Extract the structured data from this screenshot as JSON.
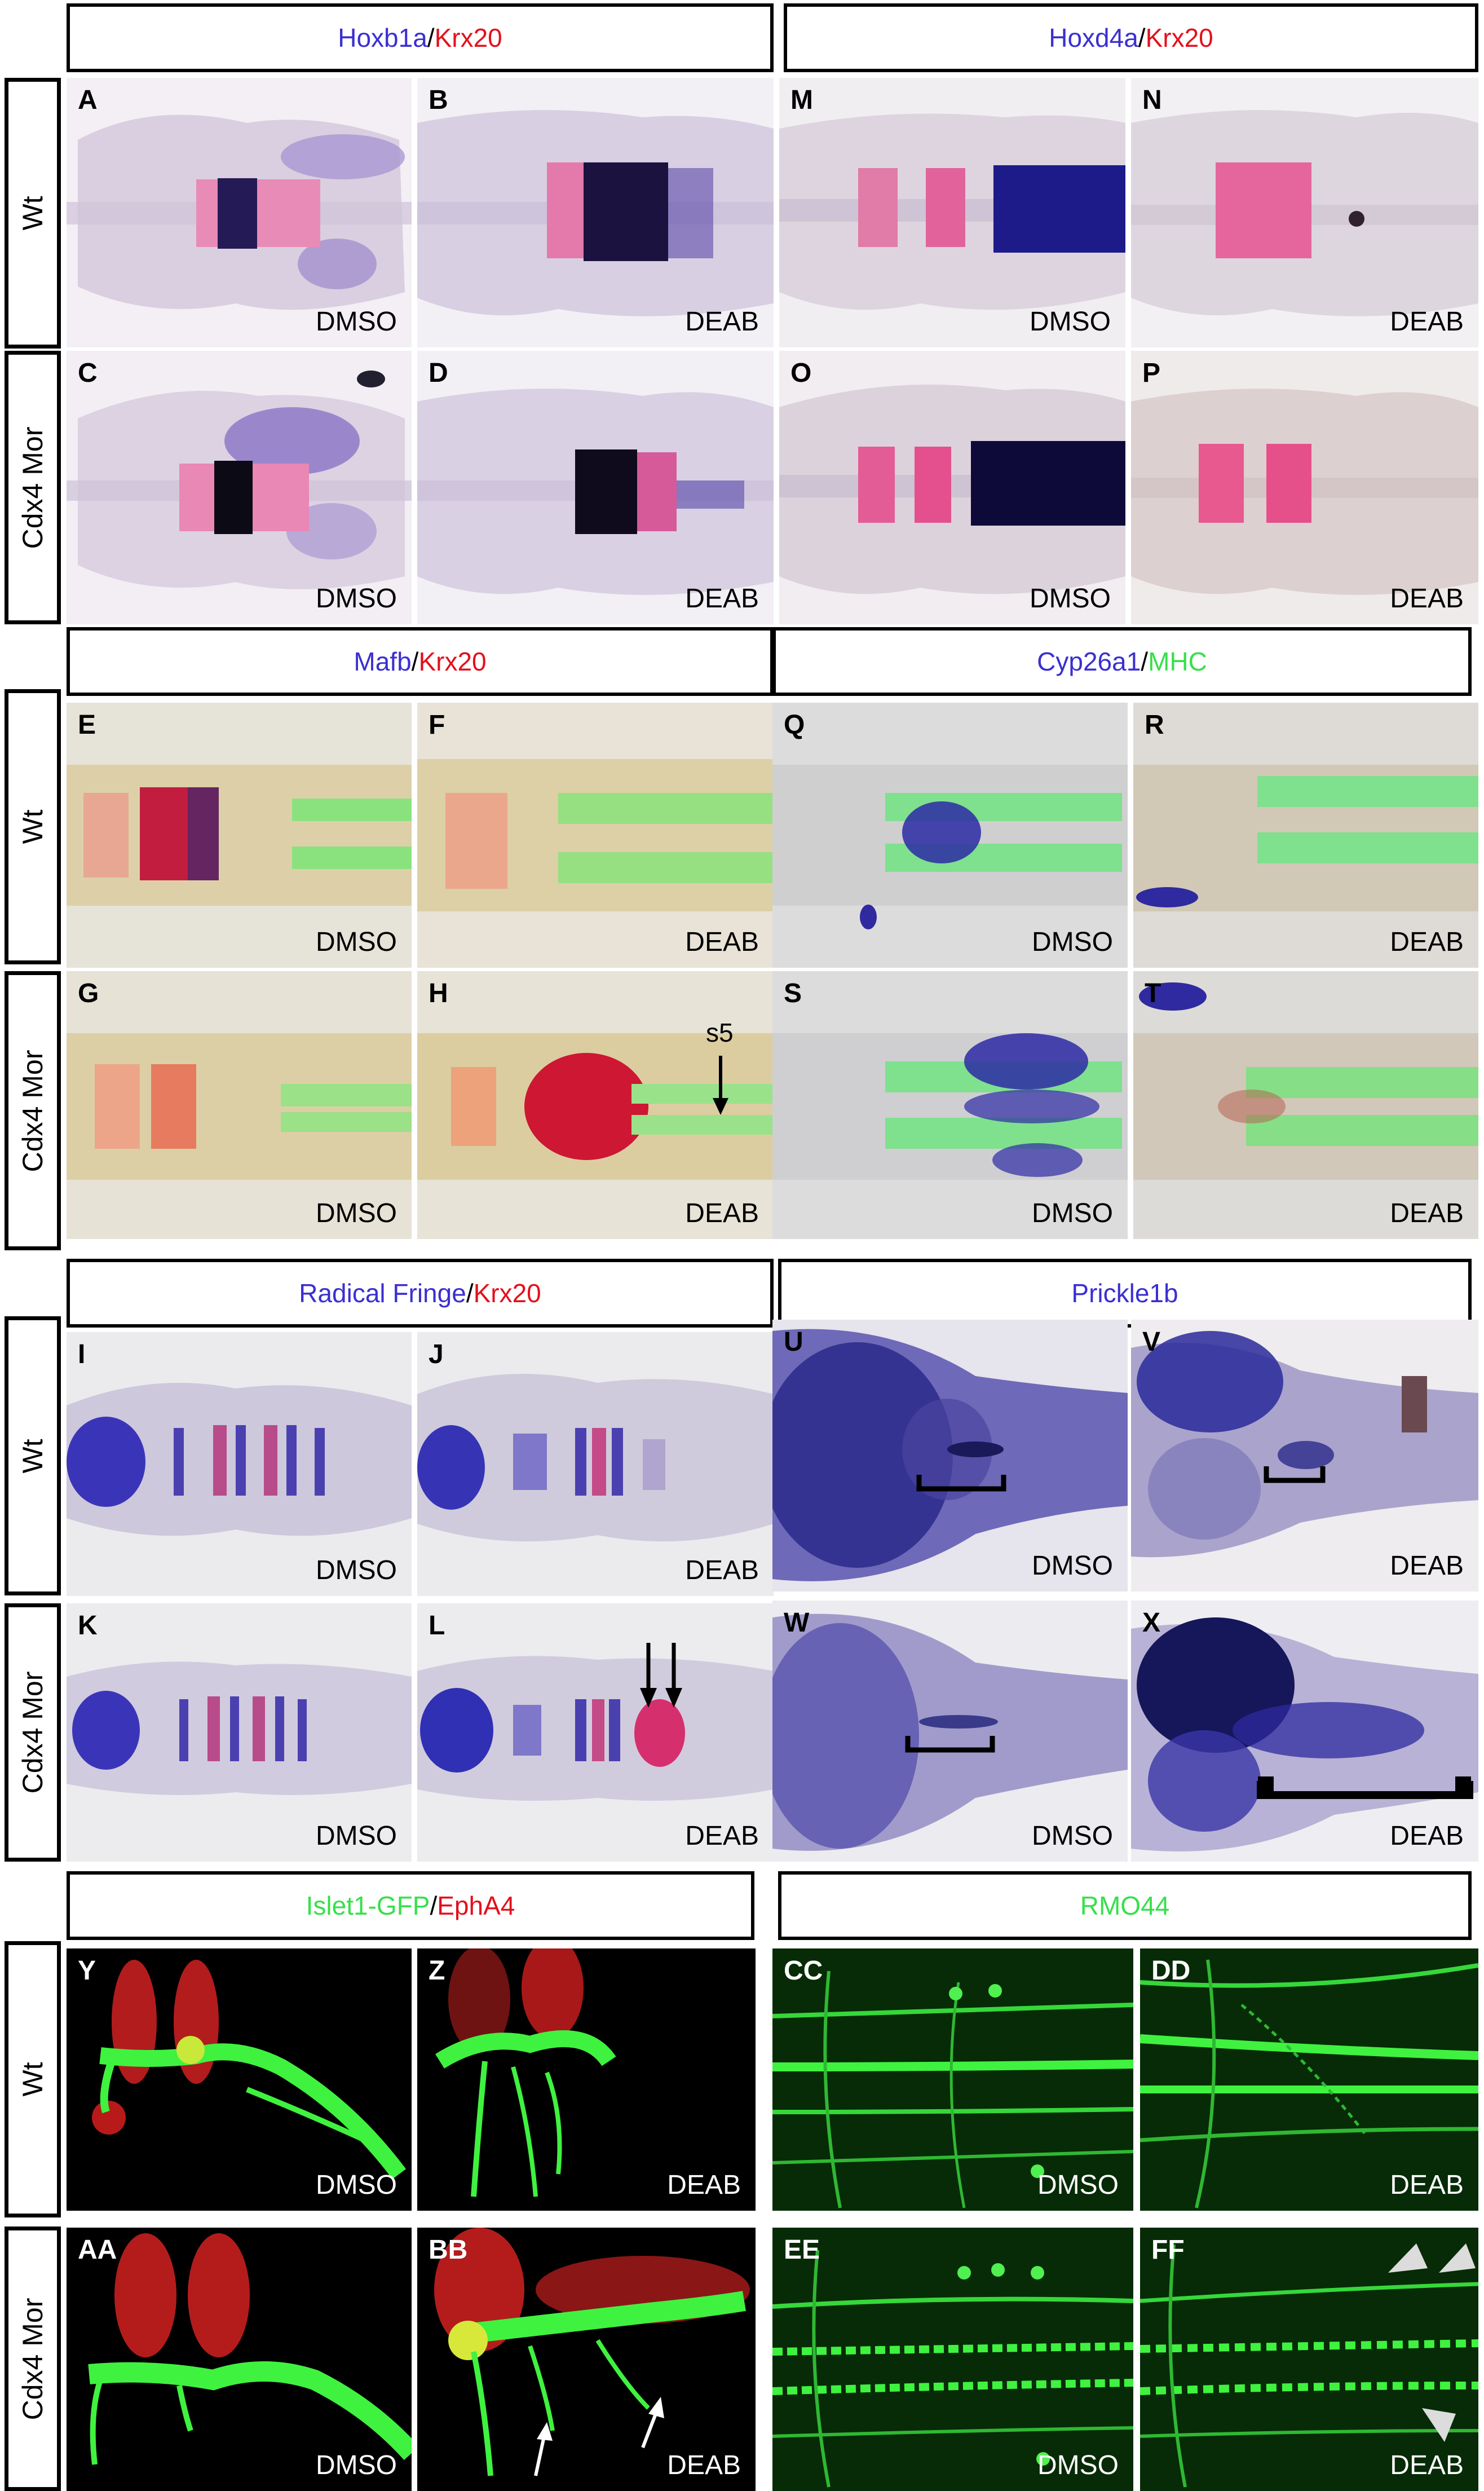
{
  "colors": {
    "blue_probe": "#3b2fd2",
    "red_probe": "#e3101c",
    "green_probe": "#37e04a"
  },
  "row_labels": {
    "wt": "Wt",
    "cdx4": "Cdx4 Mor"
  },
  "headers": {
    "hoxb1a": {
      "a": "Hoxb1a",
      "sep": "/",
      "b": "Krx20"
    },
    "hoxd4a": {
      "a": "Hoxd4a",
      "sep": "/",
      "b": "Krx20"
    },
    "mafb": {
      "a": "Mafb",
      "sep": "/",
      "b": "Krx20"
    },
    "cyp26a1": {
      "a": "Cyp26a1",
      "sep": "/",
      "b": "MHC"
    },
    "fringe": {
      "a": "Radical Fringe",
      "sep": "/",
      "b": "Krx20"
    },
    "prickle": {
      "a": "Prickle1b"
    },
    "islet": {
      "a": "Islet1-GFP",
      "sep": "/",
      "b": "EphA4"
    },
    "rmo": {
      "a": "RMO44"
    }
  },
  "panels": {
    "A": {
      "label": "A",
      "treat": "DMSO"
    },
    "B": {
      "label": "B",
      "treat": "DEAB"
    },
    "C": {
      "label": "C",
      "treat": "DMSO"
    },
    "D": {
      "label": "D",
      "treat": "DEAB"
    },
    "M": {
      "label": "M",
      "treat": "DMSO"
    },
    "N": {
      "label": "N",
      "treat": "DEAB"
    },
    "O": {
      "label": "O",
      "treat": "DMSO"
    },
    "P": {
      "label": "P",
      "treat": "DEAB"
    },
    "E": {
      "label": "E",
      "treat": "DMSO"
    },
    "F": {
      "label": "F",
      "treat": "DEAB"
    },
    "G": {
      "label": "G",
      "treat": "DMSO"
    },
    "H": {
      "label": "H",
      "treat": "DEAB",
      "annotation": "s5"
    },
    "Q": {
      "label": "Q",
      "treat": "DMSO"
    },
    "R": {
      "label": "R",
      "treat": "DEAB"
    },
    "S": {
      "label": "S",
      "treat": "DMSO"
    },
    "T": {
      "label": "T",
      "treat": "DEAB"
    },
    "I": {
      "label": "I",
      "treat": "DMSO"
    },
    "J": {
      "label": "J",
      "treat": "DEAB"
    },
    "K": {
      "label": "K",
      "treat": "DMSO"
    },
    "L": {
      "label": "L",
      "treat": "DEAB"
    },
    "U": {
      "label": "U",
      "treat": "DMSO"
    },
    "V": {
      "label": "V",
      "treat": "DEAB"
    },
    "W": {
      "label": "W",
      "treat": "DMSO"
    },
    "X": {
      "label": "X",
      "treat": "DEAB"
    },
    "Y": {
      "label": "Y",
      "treat": "DMSO"
    },
    "Z": {
      "label": "Z",
      "treat": "DEAB"
    },
    "AA": {
      "label": "AA",
      "treat": "DMSO"
    },
    "BB": {
      "label": "BB",
      "treat": "DEAB"
    },
    "CC": {
      "label": "CC",
      "treat": "DMSO"
    },
    "DD": {
      "label": "DD",
      "treat": "DEAB"
    },
    "EE": {
      "label": "EE",
      "treat": "DMSO"
    },
    "FF": {
      "label": "FF",
      "treat": "DEAB"
    }
  }
}
